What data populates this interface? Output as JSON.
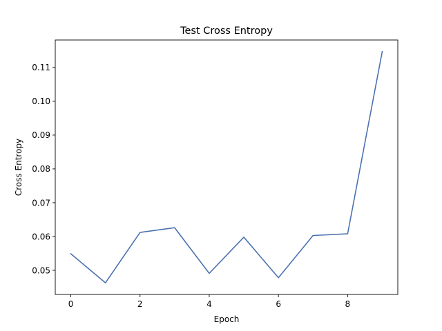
{
  "chart_data": {
    "type": "line",
    "title": "Test Cross Entropy",
    "xlabel": "Epoch",
    "ylabel": "Cross Entropy",
    "x": [
      0,
      1,
      2,
      3,
      4,
      5,
      6,
      7,
      8,
      9
    ],
    "series": [
      {
        "values": [
          0.0549,
          0.0463,
          0.0612,
          0.0626,
          0.0491,
          0.0598,
          0.0478,
          0.0603,
          0.0608,
          0.1147
        ],
        "color": "#4c72b0"
      }
    ],
    "xlim": [
      -0.45,
      9.45
    ],
    "ylim": [
      0.04286,
      0.11813
    ],
    "xticks": [
      0,
      2,
      4,
      6,
      8
    ],
    "xtick_labels": [
      "0",
      "2",
      "4",
      "6",
      "8"
    ],
    "yticks": [
      0.05,
      0.06,
      0.07,
      0.08,
      0.09,
      0.1,
      0.11
    ],
    "ytick_labels": [
      "0.05",
      "0.06",
      "0.07",
      "0.08",
      "0.09",
      "0.10",
      "0.11"
    ],
    "grid": false,
    "legend": false
  }
}
